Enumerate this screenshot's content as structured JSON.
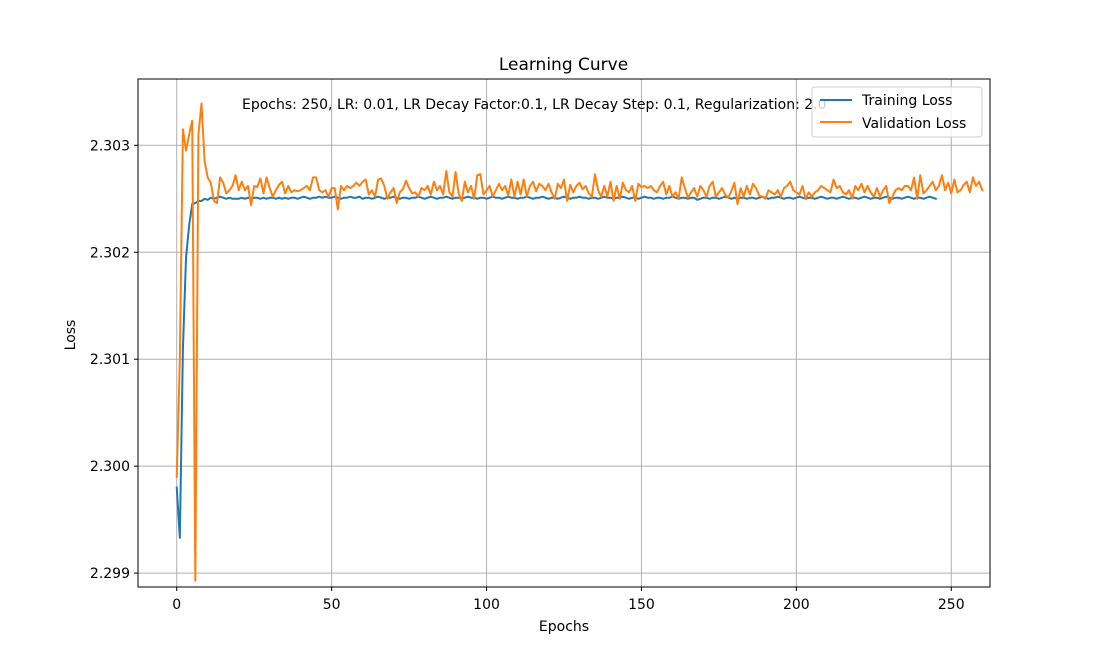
{
  "chart_data": {
    "type": "line",
    "title": "Learning Curve",
    "xlabel": "Epochs",
    "ylabel": "Loss",
    "xlim": [
      -12.5,
      262.5
    ],
    "ylim": [
      2.29887,
      2.30362
    ],
    "xticks": [
      0,
      50,
      100,
      150,
      200,
      250
    ],
    "yticks": [
      2.299,
      2.3,
      2.301,
      2.302,
      2.303
    ],
    "ytick_labels": [
      "2.299",
      "2.300",
      "2.301",
      "2.302",
      "2.303"
    ],
    "grid": true,
    "legend_position": "top-right",
    "annotation": "Epochs: 250, LR: 0.01, LR Decay Factor:0.1, LR Decay Step: 0.1, Regularization: 2.0",
    "series": [
      {
        "name": "Training Loss",
        "color": "#1f77b4",
        "values": [
          2.2998,
          2.29933,
          2.3011,
          2.30195,
          2.30225,
          2.30245,
          2.30246,
          2.30248,
          2.30248,
          2.3025,
          2.30249,
          2.30251,
          2.3025,
          2.30251,
          2.30252,
          2.30251,
          2.3025,
          2.30251,
          2.3025,
          2.3025,
          2.3025,
          2.30251,
          2.3025,
          2.30251,
          2.3025,
          2.30251,
          2.30251,
          2.3025,
          2.30251,
          2.3025,
          2.30251,
          2.30251,
          2.3025,
          2.30251,
          2.3025,
          2.30251,
          2.3025,
          2.30251,
          2.30251,
          2.3025,
          2.30251,
          2.30252,
          2.30251,
          2.3025,
          2.30251,
          2.30251,
          2.30252,
          2.30251,
          2.30252,
          2.30251,
          2.30251,
          2.30252,
          2.30251,
          2.3025,
          2.30251,
          2.30251,
          2.30252,
          2.30251,
          2.30251,
          2.30252,
          2.3025,
          2.30251,
          2.30251,
          2.3025,
          2.30251,
          2.30252,
          2.30251,
          2.3025,
          2.30251,
          2.30251,
          2.30252,
          2.30251,
          2.3025,
          2.30251,
          2.30251,
          2.3025,
          2.30251,
          2.30251,
          2.30252,
          2.30251,
          2.3025,
          2.30251,
          2.30252,
          2.30251,
          2.3025,
          2.30251,
          2.30251,
          2.30252,
          2.30251,
          2.3025,
          2.30251,
          2.30251,
          2.3025,
          2.30251,
          2.30252,
          2.30251,
          2.30251,
          2.3025,
          2.30251,
          2.30251,
          2.3025,
          2.30251,
          2.30252,
          2.30251,
          2.30251,
          2.3025,
          2.30251,
          2.30252,
          2.30251,
          2.30251,
          2.3025,
          2.30251,
          2.30251,
          2.30252,
          2.30251,
          2.3025,
          2.30251,
          2.30251,
          2.30252,
          2.30251,
          2.3025,
          2.30251,
          2.30251,
          2.3025,
          2.30251,
          2.30252,
          2.30251,
          2.3025,
          2.30251,
          2.30251,
          2.30252,
          2.30251,
          2.30251,
          2.3025,
          2.30251,
          2.30251,
          2.3025,
          2.30251,
          2.30252,
          2.30251,
          2.30251,
          2.3025,
          2.30251,
          2.30251,
          2.30252,
          2.30251,
          2.3025,
          2.30251,
          2.30251,
          2.3025,
          2.30251,
          2.30252,
          2.30251,
          2.30251,
          2.3025,
          2.30251,
          2.30251,
          2.3025,
          2.30251,
          2.30251,
          2.30252,
          2.30251,
          2.3025,
          2.30251,
          2.30251,
          2.3025,
          2.30251,
          2.30251,
          2.30249,
          2.3025,
          2.30251,
          2.30251,
          2.3025,
          2.30251,
          2.30251,
          2.3025,
          2.30251,
          2.30252,
          2.30251,
          2.3025,
          2.30251,
          2.3025,
          2.30251,
          2.30251,
          2.3025,
          2.30251,
          2.30251,
          2.3025,
          2.30251,
          2.30252,
          2.30251,
          2.3025,
          2.30251,
          2.30251,
          2.30252,
          2.30251,
          2.3025,
          2.30251,
          2.30251,
          2.3025,
          2.30251,
          2.30252,
          2.30251,
          2.3025,
          2.30251,
          2.30251,
          2.3025,
          2.30251,
          2.30252,
          2.30251,
          2.3025,
          2.30251,
          2.30251,
          2.3025,
          2.30251,
          2.30252,
          2.30251,
          2.3025,
          2.30251,
          2.30251,
          2.3025,
          2.30251,
          2.30252,
          2.30251,
          2.3025,
          2.30251,
          2.30251,
          2.3025,
          2.30251,
          2.30252,
          2.30251,
          2.3025,
          2.30251,
          2.30251,
          2.3025,
          2.30251,
          2.30252,
          2.30251,
          2.3025,
          2.30251,
          2.30251,
          2.3025,
          2.30251,
          2.30252,
          2.30251,
          2.3025
        ]
      },
      {
        "name": "Validation Loss",
        "color": "#ff7f0e",
        "values": [
          2.2999,
          2.301,
          2.30315,
          2.30295,
          2.3031,
          2.30323,
          2.29893,
          2.3031,
          2.30339,
          2.30285,
          2.3027,
          2.30265,
          2.30248,
          2.30246,
          2.3027,
          2.30265,
          2.30255,
          2.30258,
          2.30262,
          2.30272,
          2.30258,
          2.30266,
          2.30258,
          2.30262,
          2.30244,
          2.30262,
          2.30261,
          2.30269,
          2.30255,
          2.3027,
          2.3026,
          2.30252,
          2.30258,
          2.30263,
          2.30266,
          2.30255,
          2.30262,
          2.30256,
          2.30258,
          2.30257,
          2.30258,
          2.3026,
          2.30262,
          2.30258,
          2.3027,
          2.3027,
          2.30258,
          2.30256,
          2.30258,
          2.30252,
          2.3026,
          2.3026,
          2.3024,
          2.30262,
          2.30258,
          2.30262,
          2.3026,
          2.30262,
          2.30265,
          2.30262,
          2.30266,
          2.30268,
          2.30254,
          2.30258,
          2.30252,
          2.30268,
          2.30269,
          2.30262,
          2.3025,
          2.30256,
          2.3026,
          2.30246,
          2.30256,
          2.30259,
          2.30267,
          2.3026,
          2.30255,
          2.30256,
          2.30252,
          2.3026,
          2.30258,
          2.30262,
          2.30254,
          2.30266,
          2.30258,
          2.30262,
          2.30254,
          2.30276,
          2.30256,
          2.30252,
          2.30275,
          2.30255,
          2.30248,
          2.30266,
          2.30256,
          2.30262,
          2.3025,
          2.30272,
          2.30273,
          2.30254,
          2.30258,
          2.30262,
          2.30252,
          2.30258,
          2.30264,
          2.30258,
          2.30262,
          2.30253,
          2.30268,
          2.30252,
          2.30266,
          2.30254,
          2.30268,
          2.30252,
          2.30262,
          2.30266,
          2.30257,
          2.30264,
          2.30262,
          2.30258,
          2.30264,
          2.30256,
          2.3025,
          2.30264,
          2.3026,
          2.30268,
          2.30248,
          2.30263,
          2.30256,
          2.30262,
          2.30265,
          2.30259,
          2.30262,
          2.30255,
          2.30252,
          2.30273,
          2.30258,
          2.30252,
          2.30262,
          2.30252,
          2.30266,
          2.30248,
          2.30262,
          2.3025,
          2.30265,
          2.30258,
          2.30256,
          2.30262,
          2.30248,
          2.30264,
          2.30261,
          2.30262,
          2.3026,
          2.30262,
          2.30258,
          2.30256,
          2.30262,
          2.30266,
          2.30254,
          2.30262,
          2.30252,
          2.30256,
          2.3025,
          2.3027,
          2.3026,
          2.30251,
          2.30256,
          2.3026,
          2.30252,
          2.30262,
          2.30258,
          2.30252,
          2.30262,
          2.30266,
          2.30252,
          2.30256,
          2.3026,
          2.30254,
          2.30251,
          2.30257,
          2.30265,
          2.30245,
          2.3026,
          2.30252,
          2.30262,
          2.30254,
          2.30264,
          2.3026,
          2.30253,
          2.30252,
          2.3025,
          2.30258,
          2.30256,
          2.30254,
          2.30258,
          2.30252,
          2.3026,
          2.30262,
          2.30266,
          2.30258,
          2.30256,
          2.30254,
          2.30262,
          2.3025,
          2.30256,
          2.30252,
          2.30256,
          2.30258,
          2.30262,
          2.3026,
          2.30258,
          2.30256,
          2.30268,
          2.3026,
          2.30262,
          2.30256,
          2.30254,
          2.30258,
          2.3025,
          2.30262,
          2.30258,
          2.30264,
          2.30256,
          2.30262,
          2.30256,
          2.30252,
          2.3026,
          2.30252,
          2.30258,
          2.30262,
          2.30246,
          2.30252,
          2.30258,
          2.3026,
          2.30258,
          2.30262,
          2.30262,
          2.30258,
          2.3027,
          2.3025,
          2.30272,
          2.30255,
          2.30258,
          2.30262,
          2.30266,
          2.30258,
          2.30262,
          2.30272,
          2.30258,
          2.30265,
          2.30255,
          2.30268,
          2.30256,
          2.30258,
          2.30263,
          2.30266,
          2.30256,
          2.3027,
          2.30262,
          2.30266,
          2.30258
        ]
      }
    ]
  }
}
